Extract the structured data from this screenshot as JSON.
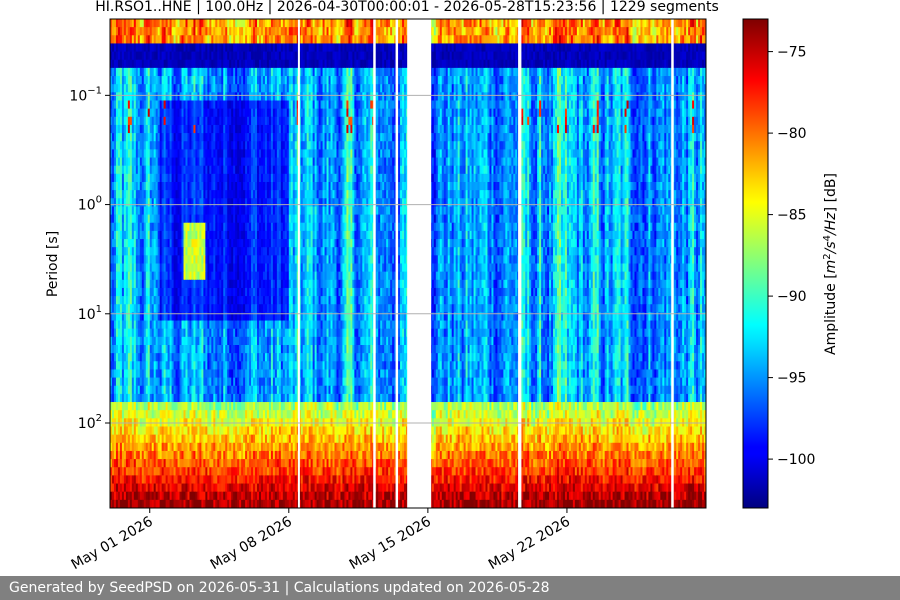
{
  "chart_data": {
    "type": "heatmap",
    "title": "HI.RSO1..HNE | 100.0Hz | 2026-04-30T00:00:01 - 2026-05-28T15:23:56 | 1229 segments",
    "ylabel": "Period [s]",
    "y_scale": "log",
    "y_inverted": true,
    "ylim": [
      0.02,
      600
    ],
    "y_ticks": [
      {
        "value": 0.1,
        "label": "10^−1",
        "base": "10",
        "exp": "−1"
      },
      {
        "value": 1,
        "label": "10^0",
        "base": "10",
        "exp": "0"
      },
      {
        "value": 10,
        "label": "10^1",
        "base": "10",
        "exp": "1"
      },
      {
        "value": 100,
        "label": "10^2",
        "base": "10",
        "exp": "2"
      }
    ],
    "x_axis_type": "date",
    "xlim": [
      "2026-04-29",
      "2026-05-29"
    ],
    "x_ticks": [
      {
        "value": "2026-05-01",
        "label": "May 01 2026"
      },
      {
        "value": "2026-05-08",
        "label": "May 08 2026"
      },
      {
        "value": "2026-05-15",
        "label": "May 15 2026"
      },
      {
        "value": "2026-05-22",
        "label": "May 22 2026"
      }
    ],
    "grid": "horizontal",
    "data_gaps": [
      [
        "2026-05-08T11:00",
        "2026-05-08T13:00"
      ],
      [
        "2026-05-12T06:00",
        "2026-05-12T09:00"
      ],
      [
        "2026-05-13T09:00",
        "2026-05-13T12:00"
      ],
      [
        "2026-05-13T23:00",
        "2026-05-15T04:00"
      ],
      [
        "2026-05-19T13:00",
        "2026-05-19T17:00"
      ],
      [
        "2026-05-27T06:00",
        "2026-05-27T09:00"
      ]
    ],
    "colorbar": {
      "label": "Amplitude [m²/s⁴/Hz] [dB]",
      "label_html": "Amplitude [<tspan font-style='italic'>m</tspan>",
      "colormap": "jet",
      "range": [
        -103,
        -73
      ],
      "ticks": [
        -75,
        -80,
        -85,
        -90,
        -95,
        -100
      ]
    }
  },
  "footer": {
    "text": "Generated by SeedPSD on 2026-05-31 | Calculations updated on 2026-05-28"
  }
}
